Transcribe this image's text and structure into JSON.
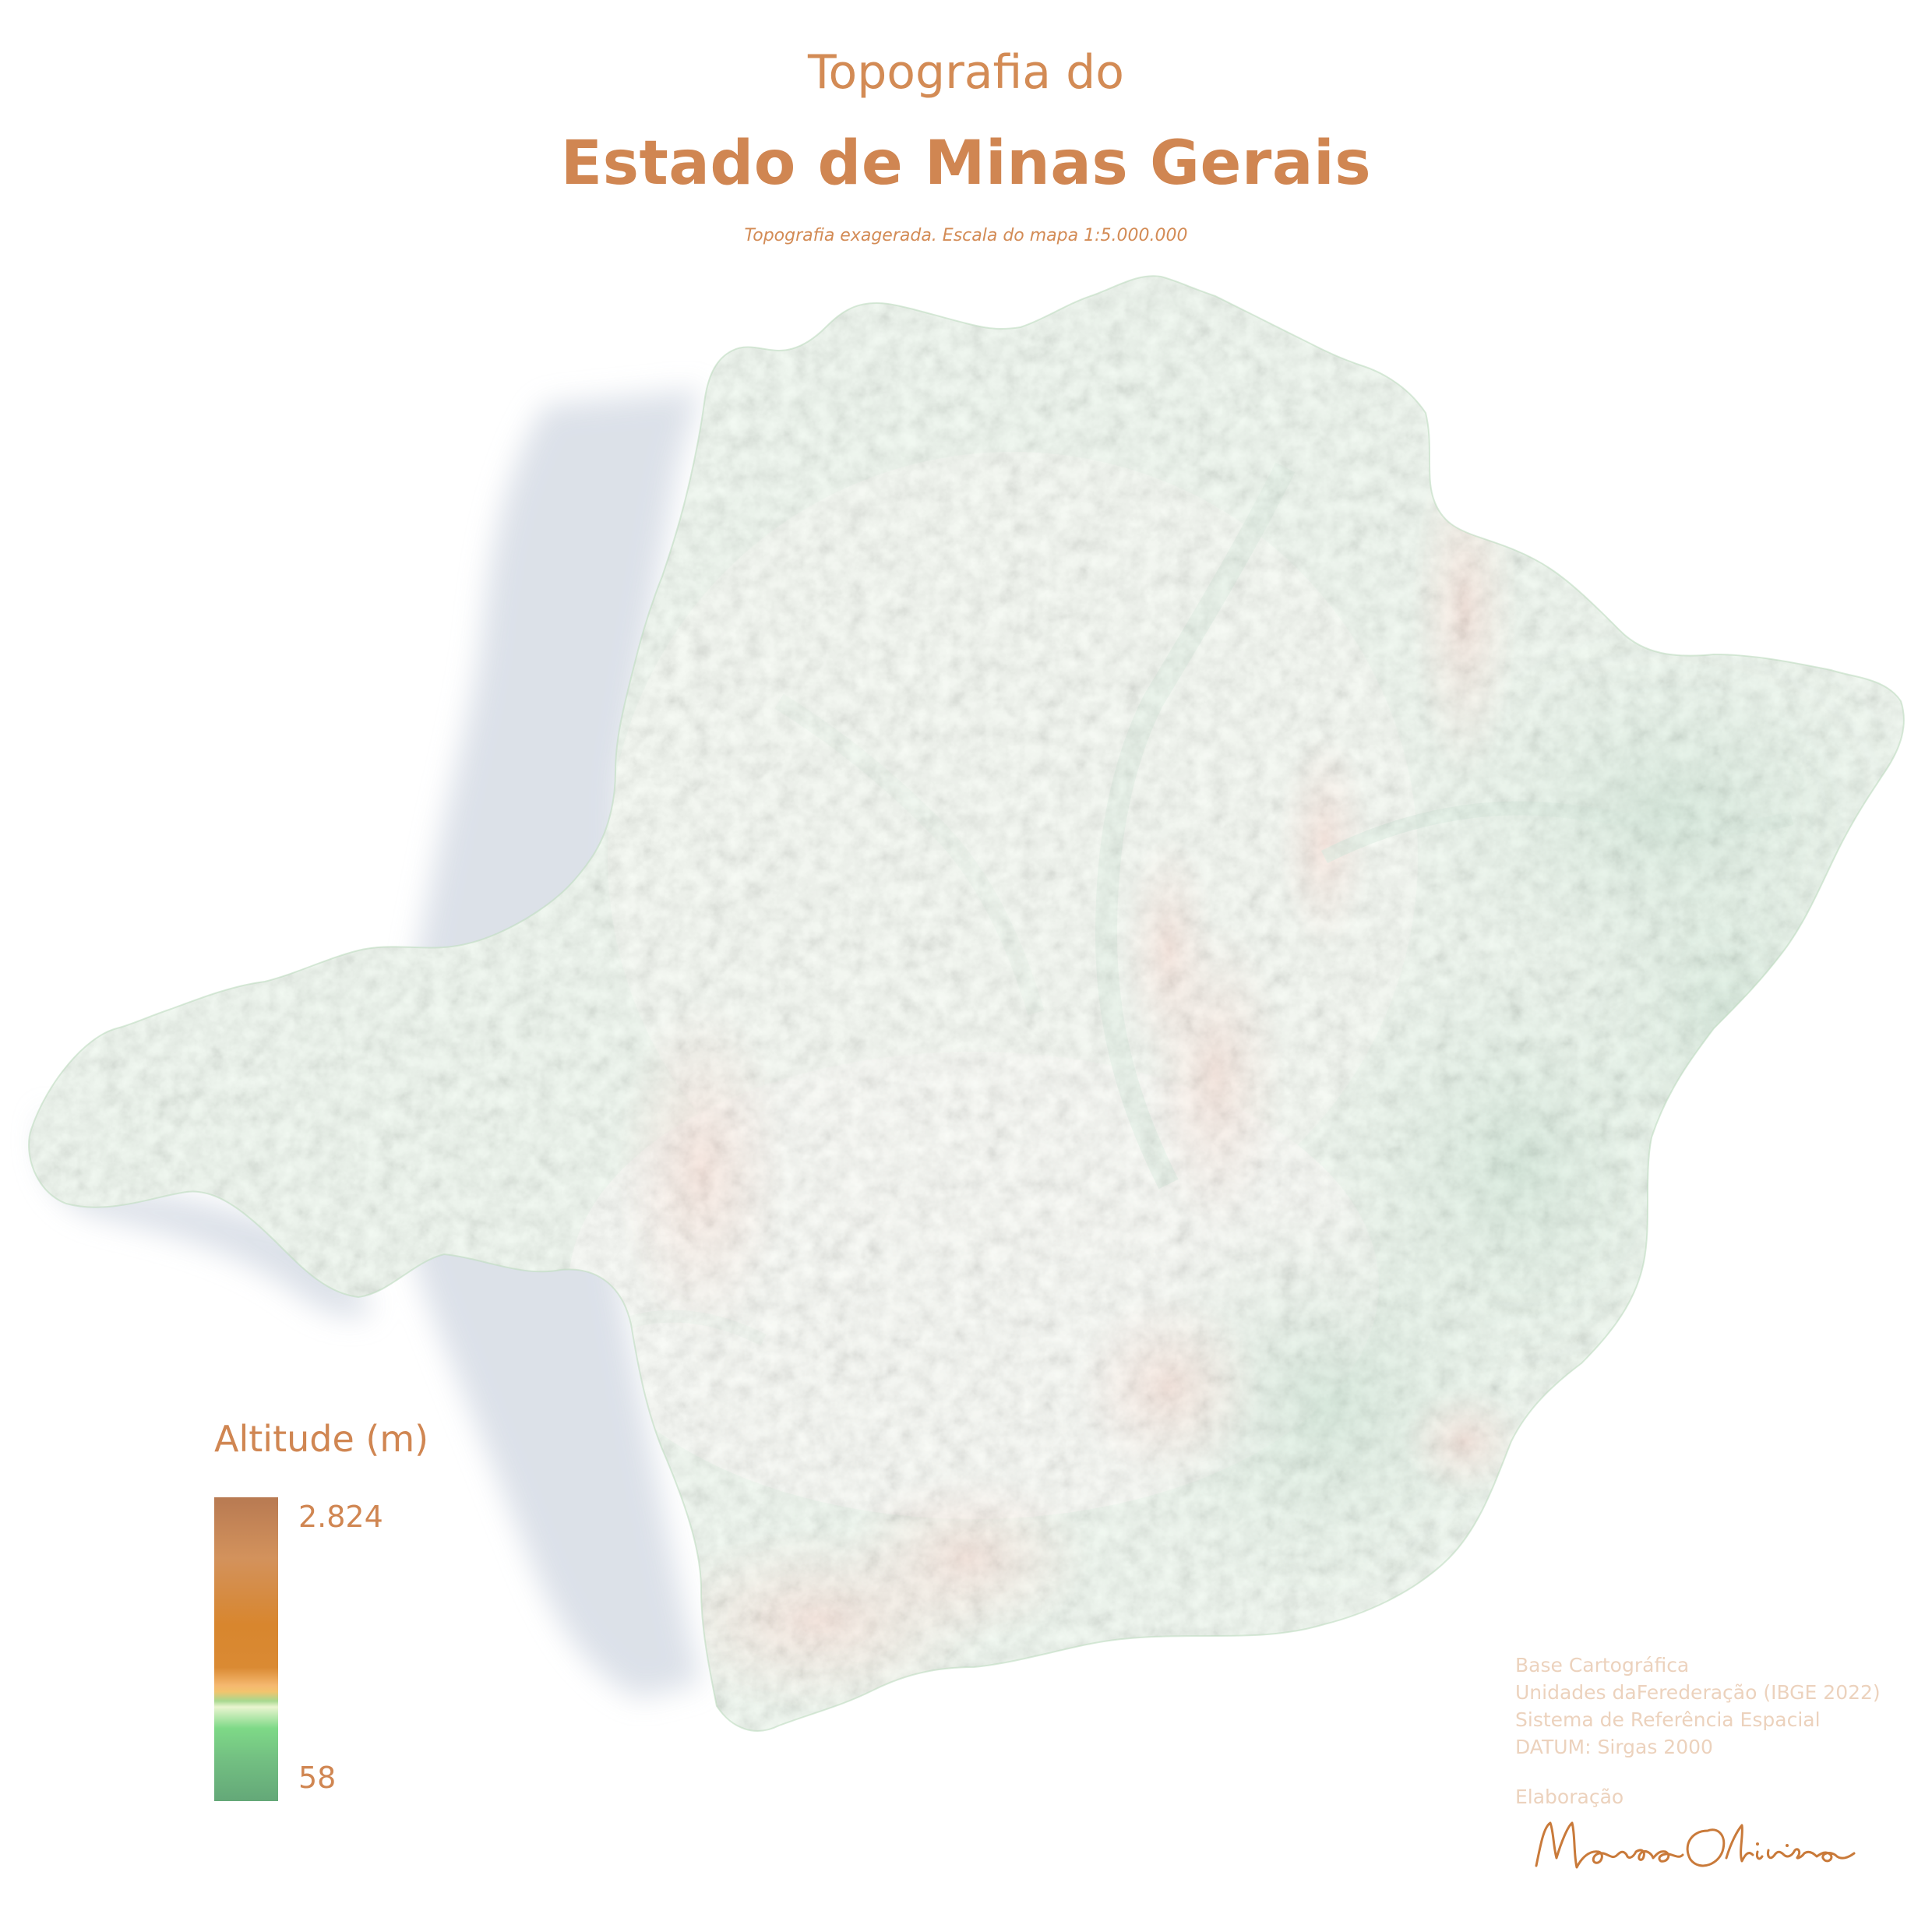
{
  "header": {
    "title_line1": "Topografia do",
    "title_line2": "Estado de Minas Gerais",
    "subtitle": "Topografia exagerada. Escala do mapa 1:5.000.000"
  },
  "legend": {
    "title": "Altitude (m)",
    "max_label": "2.824",
    "min_label": "58",
    "max_value": 2824,
    "min_value": 58,
    "colors": {
      "high": "#b87a52",
      "mid": "#d8862e",
      "low_transition": "#f2c46e",
      "low": "#7ed987",
      "lowest": "#64a878"
    }
  },
  "credits": {
    "lines": [
      "Base Cartográfica",
      "Unidades daFerederação (IBGE 2022)",
      "Sistema de Referência Espacial",
      "DATUM: Sirgas 2000"
    ],
    "elaboration_label": "Elaboração",
    "signature": "Mariane Oliveira"
  },
  "map": {
    "region": "Minas Gerais",
    "colors": {
      "lowland": "#bfe6c4",
      "midland": "#e8f3dd",
      "highland": "#efb89d",
      "valley": "#7fbf8e",
      "shadow": "#d9dee6"
    }
  }
}
